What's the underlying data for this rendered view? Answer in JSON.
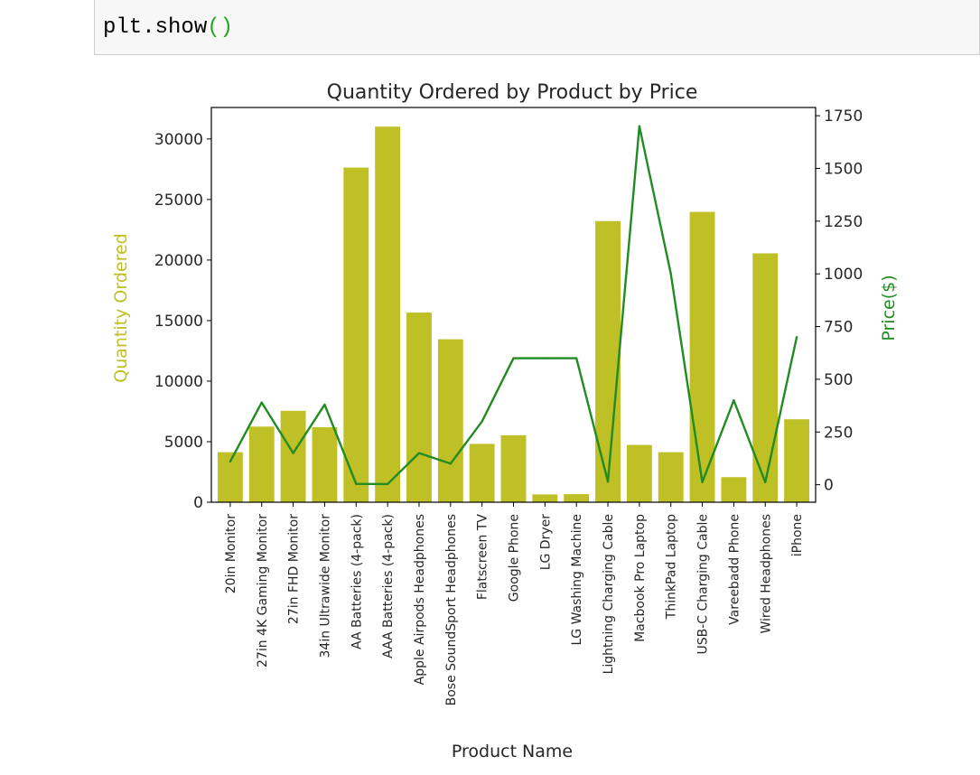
{
  "code_cell": {
    "code_prefix": "plt.show",
    "code_parens": "()"
  },
  "colors": {
    "bar": "#bfbf26",
    "line": "#228b22",
    "ylabel_left": "#bfbf26",
    "ylabel_right": "#228b22"
  },
  "chart_data": {
    "type": "bar",
    "title": "Quantity Ordered by Product by Price",
    "xlabel": "Product Name",
    "ylabel": "Quantity Ordered",
    "y2label": "Price($)",
    "categories": [
      "20in Monitor",
      "27in 4K Gaming Monitor",
      "27in FHD Monitor",
      "34in Ultrawide Monitor",
      "AA Batteries (4-pack)",
      "AAA Batteries (4-pack)",
      "Apple Airpods Headphones",
      "Bose SoundSport Headphones",
      "Flatscreen TV",
      "Google Phone",
      "LG Dryer",
      "LG Washing Machine",
      "Lightning Charging Cable",
      "Macbook Pro Laptop",
      "ThinkPad Laptop",
      "USB-C Charging Cable",
      "Vareebadd Phone",
      "Wired Headphones",
      "iPhone"
    ],
    "series": [
      {
        "name": "Quantity Ordered",
        "type": "bar",
        "axis": "left",
        "values": [
          4129,
          6244,
          7550,
          6199,
          27635,
          31017,
          15661,
          13457,
          4819,
          5532,
          646,
          666,
          23217,
          4728,
          4130,
          23975,
          2068,
          20557,
          6849
        ]
      },
      {
        "name": "Price($)",
        "type": "line",
        "axis": "right",
        "values": [
          109.99,
          389.99,
          149.99,
          379.99,
          3.84,
          2.99,
          150,
          99.99,
          300,
          600,
          600,
          600,
          14.95,
          1700,
          999.99,
          11.95,
          400,
          11.99,
          700
        ]
      }
    ],
    "ylim": [
      0,
      32600
    ],
    "y2lim": [
      -83,
      1789
    ],
    "yticks": [
      0,
      5000,
      10000,
      15000,
      20000,
      25000,
      30000
    ],
    "y2ticks": [
      0,
      250,
      500,
      750,
      1000,
      1250,
      1500,
      1750
    ],
    "grid": false,
    "legend": "none"
  }
}
